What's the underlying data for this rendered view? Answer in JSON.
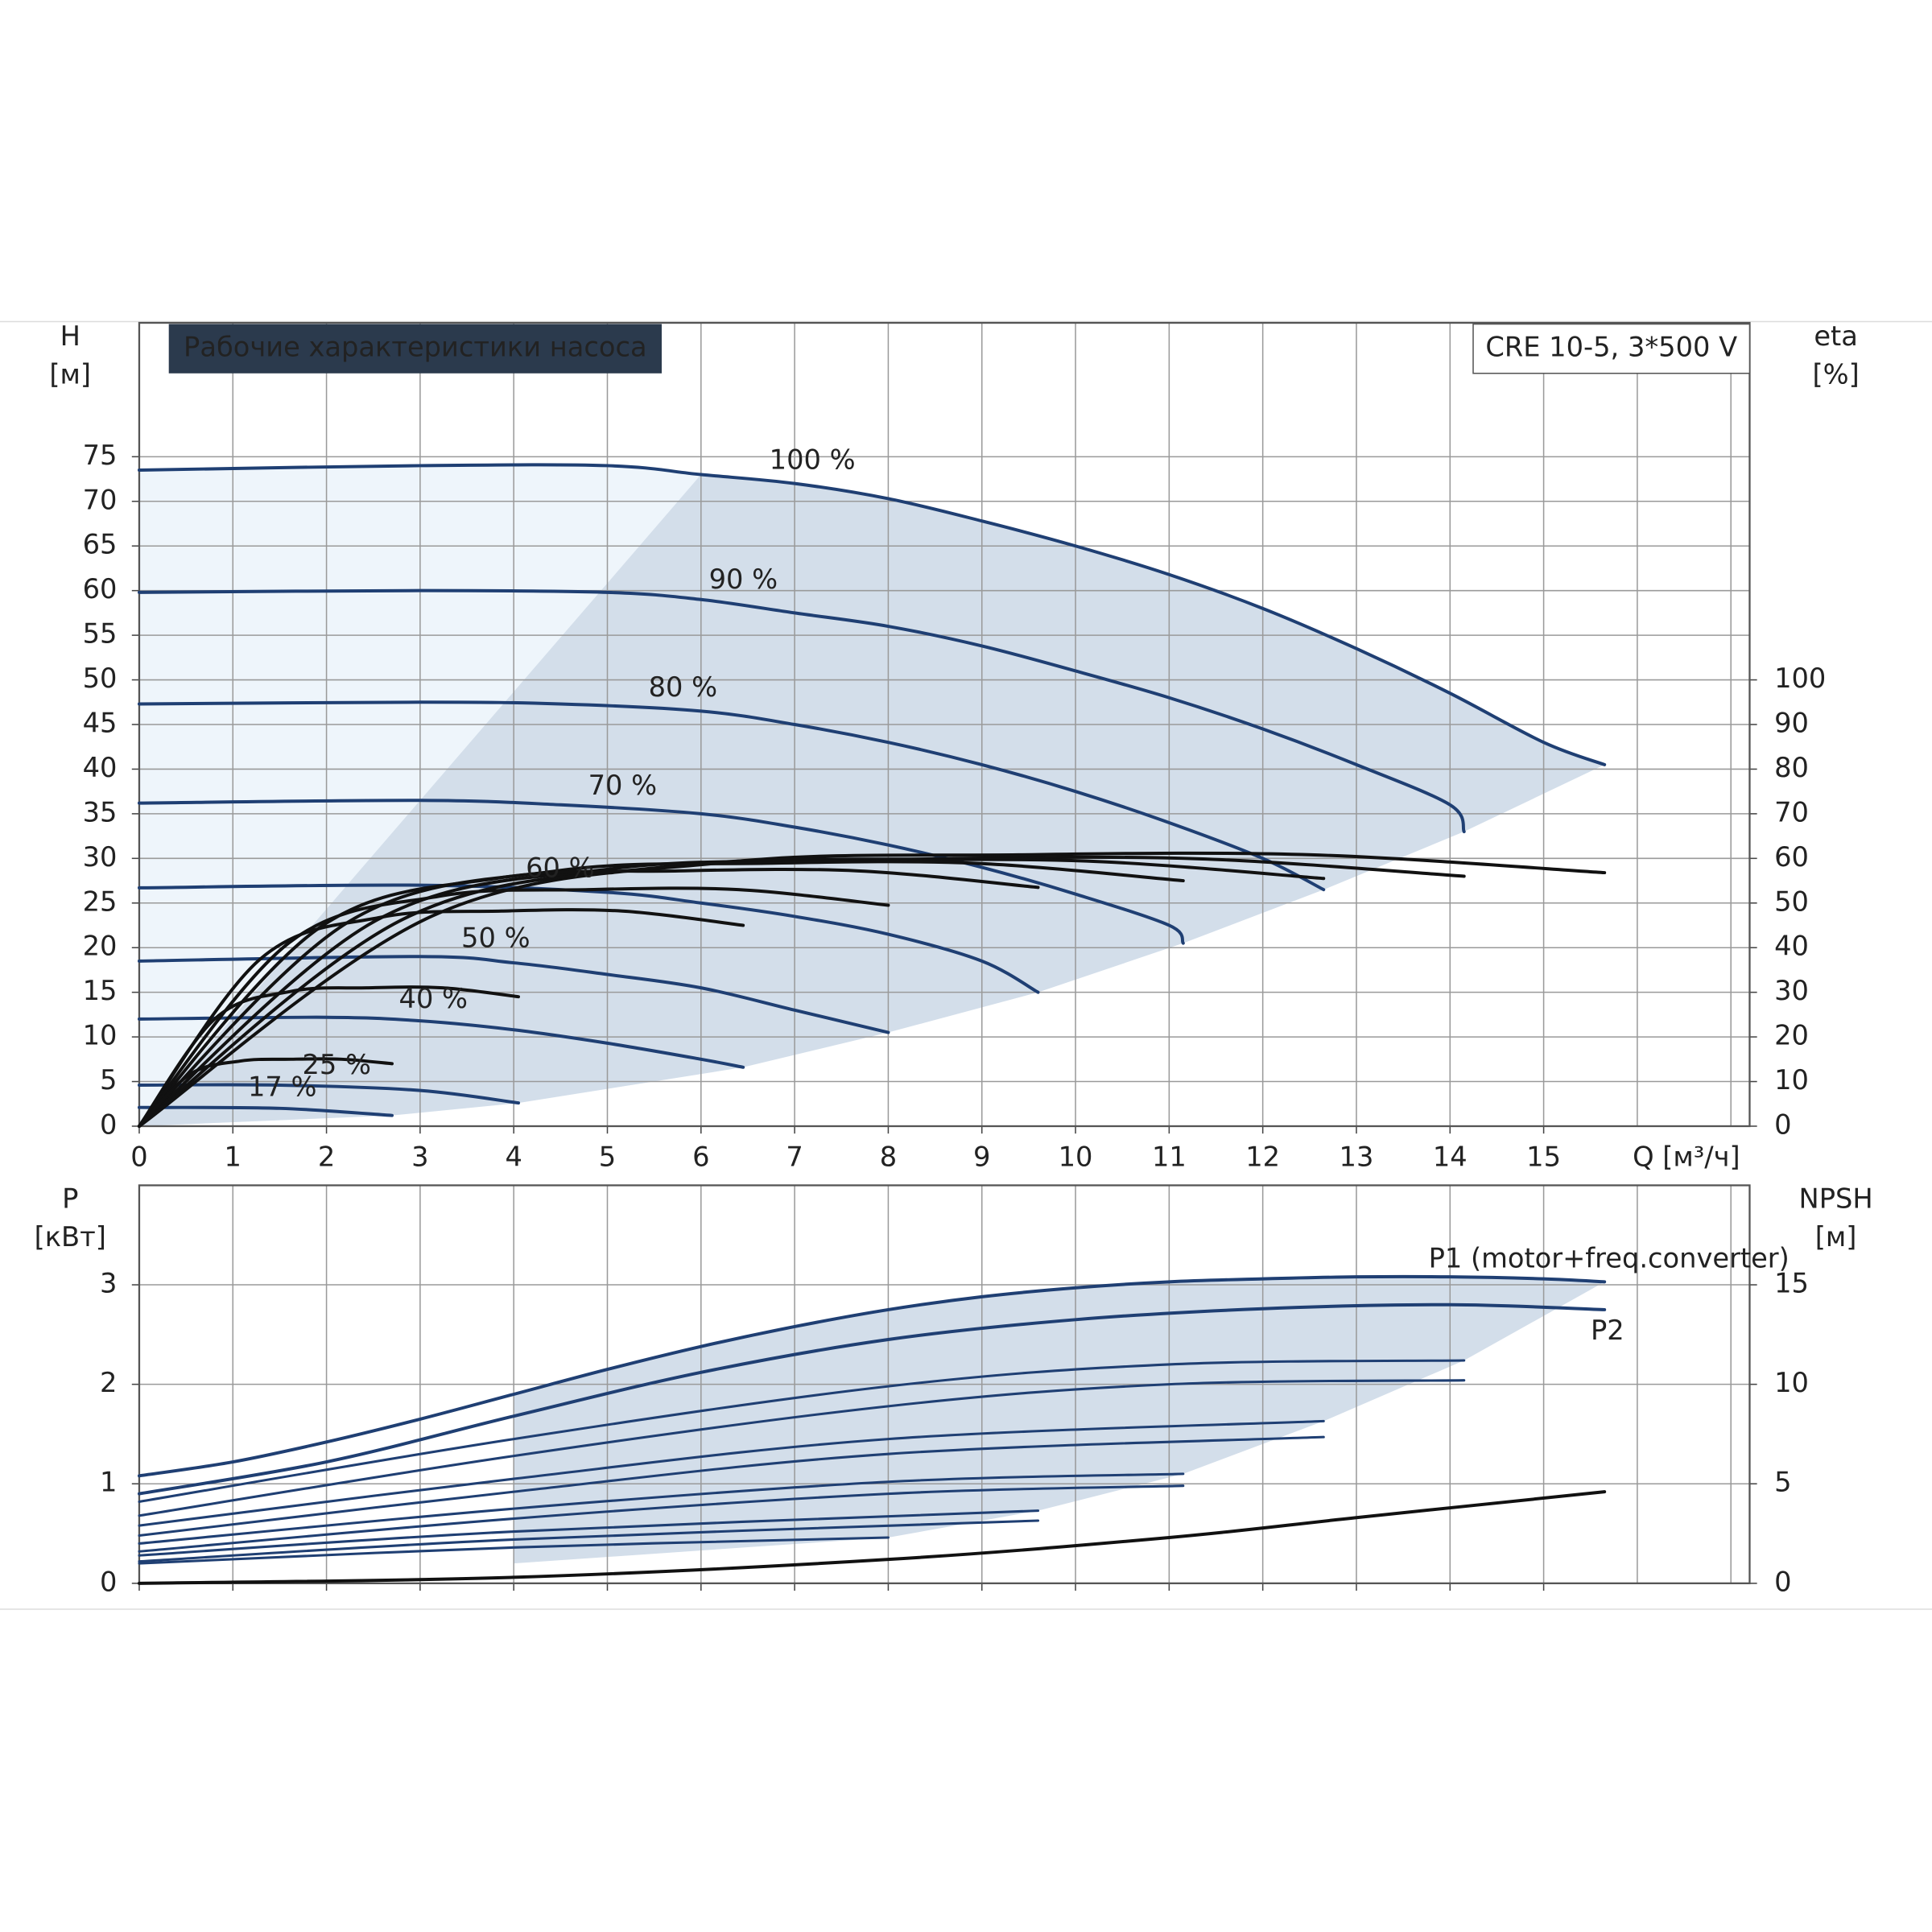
{
  "chart_data": [
    {
      "type": "line",
      "title": "Рабочие характеристики насоса",
      "subtitle": "CRE 10-5, 3*500 V",
      "x_label": "Q [м³/ч]",
      "y_label": "H",
      "y_unit": "[м]",
      "y2_label": "eta",
      "y2_unit": "[%]",
      "xlim": [
        0,
        17.2
      ],
      "xticks": [
        0,
        1,
        2,
        3,
        4,
        5,
        6,
        7,
        8,
        9,
        10,
        11,
        12,
        13,
        14,
        15
      ],
      "ylim": [
        0,
        90
      ],
      "yticks": [
        0,
        5,
        10,
        15,
        20,
        25,
        30,
        35,
        40,
        45,
        50,
        55,
        60,
        65,
        70,
        75
      ],
      "y2lim": [
        0,
        180
      ],
      "y2ticks": [
        0,
        10,
        20,
        30,
        40,
        50,
        60,
        70,
        80,
        90,
        100
      ],
      "grid": true,
      "series": [
        {
          "name": "100 %",
          "color": "#1f3f73",
          "x": [
            0,
            3,
            5,
            6,
            7,
            8,
            9,
            10,
            11,
            12,
            13,
            14,
            15,
            15.65
          ],
          "values": [
            73.5,
            74,
            74,
            73,
            72,
            70.3,
            67.8,
            65,
            61.8,
            58,
            53.5,
            48.5,
            43,
            40.5
          ]
        },
        {
          "name": "90 %",
          "color": "#1f3f73",
          "x": [
            0,
            3,
            5,
            6,
            7,
            8,
            9,
            10,
            11,
            12,
            13,
            14,
            14.15
          ],
          "values": [
            59.8,
            60,
            59.8,
            59,
            57.5,
            56,
            53.8,
            51,
            48,
            44.5,
            40.5,
            36,
            33
          ]
        },
        {
          "name": "80 %",
          "color": "#1f3f73",
          "x": [
            0,
            3,
            4.5,
            6,
            7,
            8,
            9,
            10,
            11,
            12,
            12.65
          ],
          "values": [
            47.3,
            47.5,
            47.3,
            46.5,
            45,
            43,
            40.5,
            37.5,
            34,
            30,
            26.5
          ]
        },
        {
          "name": "70 %",
          "color": "#1f3f73",
          "x": [
            0,
            3,
            4.5,
            6,
            7,
            8,
            9,
            10,
            11,
            11.15
          ],
          "values": [
            36.2,
            36.5,
            36,
            35,
            33.5,
            31.5,
            29,
            26,
            22.5,
            20.5
          ]
        },
        {
          "name": "60 %",
          "color": "#1f3f73",
          "x": [
            0,
            3,
            5,
            6,
            7,
            8,
            9,
            9.6
          ],
          "values": [
            26.7,
            27,
            26.2,
            25,
            23.5,
            21.5,
            18.5,
            15
          ]
        },
        {
          "name": "50 %",
          "color": "#1f3f73",
          "x": [
            0,
            3,
            4,
            5,
            6,
            7,
            8
          ],
          "values": [
            18.5,
            19,
            18.3,
            17,
            15.5,
            13,
            10.5
          ]
        },
        {
          "name": "40 %",
          "color": "#1f3f73",
          "x": [
            0,
            2,
            3,
            4,
            5,
            6,
            6.45
          ],
          "values": [
            12,
            12.2,
            11.8,
            10.8,
            9.3,
            7.5,
            6.6
          ]
        },
        {
          "name": "25 %",
          "color": "#1f3f73",
          "x": [
            0,
            1.5,
            3,
            4.05
          ],
          "values": [
            4.6,
            4.6,
            4,
            2.6
          ]
        },
        {
          "name": "17 %",
          "color": "#1f3f73",
          "x": [
            0,
            1.5,
            2.7
          ],
          "values": [
            2.1,
            2,
            1.2
          ]
        },
        {
          "color": "#111111",
          "axis": "y2",
          "x": [
            0,
            3.13,
            6.26,
            9.39,
            12.52,
            15.65
          ],
          "values": [
            0,
            47.1,
            59.1,
            60.8,
            60.8,
            56.8
          ]
        },
        {
          "color": "#111111",
          "axis": "y2",
          "x": [
            0,
            2.83,
            5.66,
            8.49,
            11.32,
            14.15
          ],
          "values": [
            0,
            46.5,
            58.2,
            59.9,
            59.9,
            56
          ]
        },
        {
          "color": "#111111",
          "axis": "y2",
          "x": [
            0,
            2.53,
            5.06,
            7.59,
            10.12,
            12.65
          ],
          "values": [
            0,
            46.1,
            57.7,
            59.4,
            59.4,
            55.5
          ]
        },
        {
          "color": "#111111",
          "axis": "y2",
          "x": [
            0,
            2.23,
            4.46,
            6.69,
            8.92,
            11.15
          ],
          "values": [
            0,
            45.7,
            57.2,
            58.9,
            58.9,
            55
          ]
        },
        {
          "color": "#111111",
          "axis": "y2",
          "x": [
            0,
            1.92,
            3.84,
            5.76,
            7.68,
            9.6
          ],
          "values": [
            0,
            44.4,
            55.6,
            57.2,
            57.2,
            53.5
          ]
        },
        {
          "color": "#111111",
          "axis": "y2",
          "x": [
            0,
            1.6,
            3.2,
            4.8,
            6.4,
            8
          ],
          "values": [
            0,
            41.1,
            51.5,
            53,
            53,
            49.5
          ]
        },
        {
          "color": "#111111",
          "axis": "y2",
          "x": [
            0,
            1.29,
            2.58,
            3.87,
            5.16,
            6.45
          ],
          "values": [
            0,
            37.4,
            46.8,
            48.2,
            48.2,
            45
          ]
        },
        {
          "color": "#111111",
          "axis": "y2",
          "x": [
            0,
            0.81,
            1.62,
            2.43,
            3.24,
            4.05
          ],
          "values": [
            0,
            24.1,
            30.2,
            31,
            31,
            29
          ]
        },
        {
          "color": "#111111",
          "axis": "y2",
          "x": [
            0,
            0.54,
            1.08,
            1.62,
            2.16,
            2.7
          ],
          "values": [
            0,
            11.6,
            14.6,
            15,
            15,
            14
          ]
        }
      ]
    },
    {
      "type": "line",
      "y_label": "P",
      "y_unit": "[кВт]",
      "y2_label": "NPSH",
      "y2_unit": "[м]",
      "xlim": [
        0,
        17.2
      ],
      "xticks": [
        0,
        1,
        2,
        3,
        4,
        5,
        6,
        7,
        8,
        9,
        10,
        11,
        12,
        13,
        14,
        15
      ],
      "ylim": [
        0,
        4
      ],
      "yticks": [
        0,
        1,
        2,
        3
      ],
      "y2lim": [
        0,
        20
      ],
      "y2ticks": [
        0,
        5,
        10,
        15
      ],
      "grid": true,
      "series": [
        {
          "name": "P1 (motor+freq.converter)",
          "color": "#1f3f73",
          "x": [
            0,
            1,
            2,
            3,
            4,
            5,
            6,
            7,
            8,
            9,
            10,
            11,
            12,
            13,
            14,
            15,
            15.65
          ],
          "values": [
            1.08,
            1.22,
            1.42,
            1.65,
            1.9,
            2.15,
            2.38,
            2.58,
            2.75,
            2.88,
            2.97,
            3.03,
            3.06,
            3.08,
            3.08,
            3.06,
            3.03
          ]
        },
        {
          "name": "P2",
          "color": "#1f3f73",
          "x": [
            0,
            2,
            4,
            6,
            8,
            10,
            12,
            14,
            15.65
          ],
          "values": [
            0.9,
            1.22,
            1.68,
            2.12,
            2.45,
            2.65,
            2.76,
            2.8,
            2.75
          ]
        },
        {
          "color": "#1f3f73",
          "x": [
            0,
            4,
            8,
            11,
            14.15
          ],
          "values": [
            0.82,
            1.45,
            1.98,
            2.2,
            2.24
          ]
        },
        {
          "color": "#1f3f73",
          "x": [
            0,
            4,
            8,
            11,
            14.15
          ],
          "values": [
            0.68,
            1.28,
            1.78,
            2,
            2.04
          ]
        },
        {
          "color": "#1f3f73",
          "x": [
            0,
            4,
            8,
            12.65
          ],
          "values": [
            0.58,
            1.05,
            1.45,
            1.63
          ]
        },
        {
          "color": "#1f3f73",
          "x": [
            0,
            4,
            8,
            12.65
          ],
          "values": [
            0.48,
            0.92,
            1.3,
            1.47
          ]
        },
        {
          "color": "#1f3f73",
          "x": [
            0,
            4,
            8,
            11.15
          ],
          "values": [
            0.4,
            0.75,
            1.02,
            1.1
          ]
        },
        {
          "color": "#1f3f73",
          "x": [
            0,
            4,
            8,
            11.15
          ],
          "values": [
            0.32,
            0.65,
            0.9,
            0.98
          ]
        },
        {
          "color": "#1f3f73",
          "x": [
            0,
            4,
            9.6
          ],
          "values": [
            0.28,
            0.52,
            0.73
          ]
        },
        {
          "color": "#1f3f73",
          "x": [
            0,
            4,
            9.6
          ],
          "values": [
            0.22,
            0.44,
            0.63
          ]
        },
        {
          "color": "#1f3f73",
          "x": [
            0,
            4,
            8
          ],
          "values": [
            0.2,
            0.36,
            0.46
          ]
        },
        {
          "color": "#111111",
          "axis": "y2",
          "x": [
            0,
            4,
            8,
            11,
            13,
            15.65
          ],
          "values": [
            0,
            0.3,
            1.2,
            2.3,
            3.3,
            4.6
          ]
        }
      ]
    }
  ]
}
